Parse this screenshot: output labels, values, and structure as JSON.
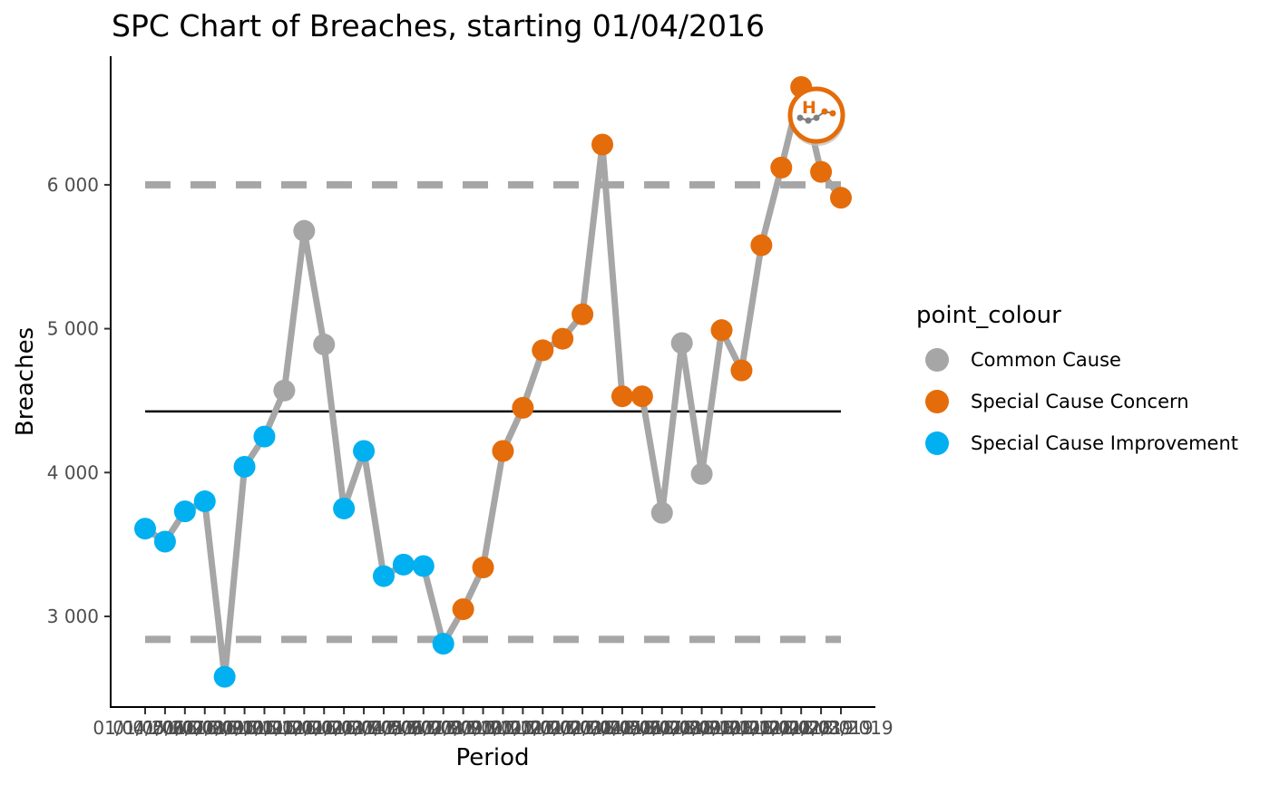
{
  "chart_data": {
    "type": "line",
    "title": "SPC Chart of Breaches, starting 01/04/2016",
    "xlabel": "Period",
    "ylabel": "Breaches",
    "ylim": [
      2350,
      6850
    ],
    "yticks": [
      3000,
      4000,
      5000,
      6000
    ],
    "ytick_labels": [
      "3 000",
      "4 000",
      "5 000",
      "6 000"
    ],
    "x": [
      "01/04/2016",
      "01/05/2016",
      "01/06/2016",
      "01/07/2016",
      "01/08/2016",
      "01/09/2016",
      "01/10/2016",
      "01/11/2016",
      "01/12/2016",
      "01/01/2017",
      "01/02/2017",
      "01/03/2017",
      "01/04/2017",
      "01/05/2017",
      "01/06/2017",
      "01/07/2017",
      "01/08/2017",
      "01/09/2017",
      "01/10/2017",
      "01/11/2017",
      "01/12/2017",
      "01/01/2018",
      "01/02/2018",
      "01/03/2018",
      "01/04/2018",
      "01/05/2018",
      "01/06/2018",
      "01/07/2018",
      "01/08/2018",
      "01/09/2018",
      "01/10/2018",
      "01/11/2018",
      "01/12/2018",
      "01/01/2019",
      "01/02/2019",
      "01/03/2019"
    ],
    "x_tick_labels": [
      "01/04/2016",
      "01/05/2016",
      "01/06/2016",
      "01/07/2016",
      "01/08/2016",
      "01/09/2016",
      "01/10/2016",
      "01/11/2016",
      "01/12/2016",
      "01/01/2017",
      "01/02/2017",
      "01/03/2017",
      "01/04/2017",
      "01/05/2017",
      "01/06/2017",
      "01/07/2017",
      "01/08/2017",
      "01/09/2017",
      "01/10/2017",
      "01/11/2017",
      "01/12/2017",
      "01/01/2018",
      "01/02/2018",
      "01/03/2018",
      "01/04/2018",
      "01/05/2018",
      "01/06/2018",
      "01/07/2018",
      "01/08/2018",
      "01/09/2018",
      "01/10/2018",
      "01/11/2018",
      "01/12/2018",
      "01/01/2019",
      "01/02/2019",
      "01/03/2019"
    ],
    "values": [
      3610,
      3520,
      3730,
      3800,
      2580,
      4040,
      4250,
      4570,
      5680,
      4890,
      3750,
      4150,
      3280,
      3360,
      3350,
      2810,
      3050,
      3340,
      4150,
      4450,
      4850,
      4930,
      5100,
      6280,
      4530,
      4530,
      3720,
      4900,
      3990,
      4990,
      4710,
      5580,
      6120,
      6680,
      6090,
      5910
    ],
    "point_colour": [
      "Special Cause Improvement",
      "Special Cause Improvement",
      "Special Cause Improvement",
      "Special Cause Improvement",
      "Special Cause Improvement",
      "Special Cause Improvement",
      "Special Cause Improvement",
      "Common Cause",
      "Common Cause",
      "Common Cause",
      "Special Cause Improvement",
      "Special Cause Improvement",
      "Special Cause Improvement",
      "Special Cause Improvement",
      "Special Cause Improvement",
      "Special Cause Improvement",
      "Special Cause Concern",
      "Special Cause Concern",
      "Special Cause Concern",
      "Special Cause Concern",
      "Special Cause Concern",
      "Special Cause Concern",
      "Special Cause Concern",
      "Special Cause Concern",
      "Special Cause Concern",
      "Special Cause Concern",
      "Common Cause",
      "Common Cause",
      "Common Cause",
      "Special Cause Concern",
      "Special Cause Concern",
      "Special Cause Concern",
      "Special Cause Concern",
      "Special Cause Concern",
      "Special Cause Concern",
      "Special Cause Concern"
    ],
    "mean": 4425,
    "upper_limit": 6000,
    "lower_limit": 2840,
    "legend": {
      "title": "point_colour",
      "position": "right",
      "entries": [
        {
          "label": "Common Cause",
          "color": "#a6a6a6"
        },
        {
          "label": "Special Cause Concern",
          "color": "#e46c0a"
        },
        {
          "label": "Special Cause Improvement",
          "color": "#00b0f0"
        }
      ]
    },
    "colors": {
      "line": "#a6a6a6",
      "limits": "#a6a6a6",
      "mean": "#000000",
      "Common Cause": "#a6a6a6",
      "Special Cause Concern": "#e46c0a",
      "Special Cause Improvement": "#00b0f0"
    },
    "grid": false,
    "icon": {
      "name": "variation-high-concern-icon",
      "letter": "H",
      "color": "#e46c0a"
    }
  }
}
